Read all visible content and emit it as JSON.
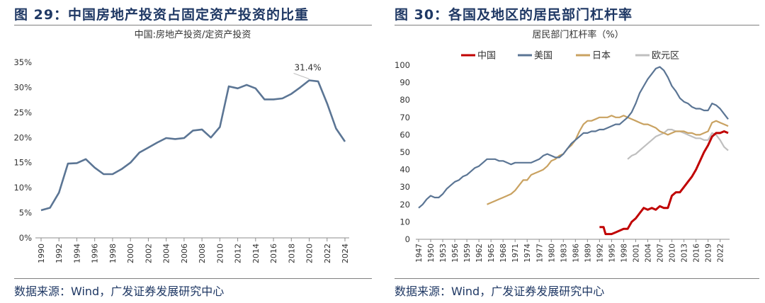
{
  "panels": [
    {
      "figure_title": "图 29：中国房地产投资占固定资产投资的比重",
      "source": "数据来源：Wind，广发证券发展研究中心"
    },
    {
      "figure_title": "图 30：各国及地区的居民部门杠杆率",
      "source": "数据来源：Wind，广发证券发展研究中心"
    }
  ],
  "chart_data": [
    {
      "type": "line",
      "title": "中国:房地产投资/定资产投资",
      "xlabel": "",
      "ylabel": "",
      "x": [
        1990,
        1991,
        1992,
        1993,
        1994,
        1995,
        1996,
        1997,
        1998,
        1999,
        2000,
        2001,
        2002,
        2003,
        2004,
        2005,
        2006,
        2007,
        2008,
        2009,
        2010,
        2011,
        2012,
        2013,
        2014,
        2015,
        2016,
        2017,
        2018,
        2019,
        2020,
        2021,
        2022,
        2023,
        2024
      ],
      "xtick_labels": [
        "1990",
        "1992",
        "1994",
        "1996",
        "1998",
        "2000",
        "2002",
        "2004",
        "2006",
        "2008",
        "2010",
        "2012",
        "2014",
        "2016",
        "2018",
        "2020",
        "2022",
        "2024"
      ],
      "ylim": [
        0,
        35
      ],
      "yticks": [
        0,
        5,
        10,
        15,
        20,
        25,
        30,
        35
      ],
      "ytick_labels": [
        "0%",
        "5%",
        "10%",
        "15%",
        "20%",
        "25%",
        "30%",
        "35%"
      ],
      "grid": false,
      "series": [
        {
          "color": "#5b7594",
          "values": [
            5.5,
            6.0,
            9.0,
            14.8,
            14.9,
            15.7,
            14.0,
            12.7,
            12.7,
            13.7,
            15.0,
            17.0,
            18.0,
            19.0,
            19.9,
            19.7,
            19.9,
            21.4,
            21.6,
            20.0,
            22.1,
            30.2,
            29.8,
            30.5,
            29.8,
            27.6,
            27.6,
            27.8,
            28.7,
            30.0,
            31.4,
            31.2,
            26.8,
            21.8,
            19.2
          ]
        }
      ],
      "annotations": [
        {
          "x": 2020,
          "y": 31.4,
          "text": "31.4%"
        }
      ]
    },
    {
      "type": "line",
      "title": "居民部门杠杆率（%）",
      "xlabel": "",
      "ylabel": "",
      "xlim": [
        1947,
        2024
      ],
      "xtick_labels": [
        "1947",
        "1950",
        "1953",
        "1956",
        "1959",
        "1962",
        "1965",
        "1968",
        "1971",
        "1974",
        "1977",
        "1980",
        "1983",
        "1986",
        "1989",
        "1992",
        "1995",
        "1998",
        "2001",
        "2004",
        "2007",
        "2010",
        "2013",
        "2016",
        "2019",
        "2022"
      ],
      "ylim": [
        0,
        100
      ],
      "yticks": [
        0,
        10,
        20,
        30,
        40,
        50,
        60,
        70,
        80,
        90,
        100
      ],
      "ytick_labels": [
        "0",
        "10",
        "20",
        "30",
        "40",
        "50",
        "60",
        "70",
        "80",
        "90",
        "100"
      ],
      "grid": false,
      "legend": "top",
      "series": [
        {
          "name": "中国",
          "color": "#c00000",
          "x": [
            1992,
            1993,
            1993.5,
            1995,
            1996,
            1997,
            1998,
            1999,
            2000,
            2001,
            2002,
            2003,
            2004,
            2005,
            2006,
            2007,
            2008,
            2009,
            2010,
            2011,
            2012,
            2013,
            2014,
            2015,
            2016,
            2017,
            2018,
            2019,
            2020,
            2021,
            2022,
            2023,
            2024
          ],
          "values": [
            7,
            7,
            3,
            3,
            4,
            5,
            6,
            6,
            10,
            12,
            15,
            18,
            17,
            18,
            17,
            19,
            18,
            18,
            25,
            27,
            27,
            30,
            33,
            36,
            40,
            45,
            50,
            54,
            59,
            61,
            61,
            62,
            61
          ]
        },
        {
          "name": "美国",
          "color": "#5b7594",
          "x": [
            1947,
            1948,
            1949,
            1950,
            1951,
            1952,
            1953,
            1954,
            1955,
            1956,
            1957,
            1958,
            1959,
            1960,
            1961,
            1962,
            1963,
            1964,
            1965,
            1966,
            1967,
            1968,
            1969,
            1970,
            1971,
            1972,
            1973,
            1974,
            1975,
            1976,
            1977,
            1978,
            1979,
            1980,
            1981,
            1982,
            1983,
            1984,
            1985,
            1986,
            1987,
            1988,
            1989,
            1990,
            1991,
            1992,
            1993,
            1994,
            1995,
            1996,
            1997,
            1998,
            1999,
            2000,
            2001,
            2002,
            2003,
            2004,
            2005,
            2006,
            2007,
            2008,
            2009,
            2010,
            2011,
            2012,
            2013,
            2014,
            2015,
            2016,
            2017,
            2018,
            2019,
            2020,
            2021,
            2022,
            2023,
            2024
          ],
          "values": [
            18,
            20,
            23,
            25,
            24,
            24,
            26,
            29,
            31,
            33,
            34,
            36,
            37,
            39,
            41,
            42,
            44,
            46,
            46,
            46,
            45,
            45,
            44,
            43,
            44,
            44,
            44,
            44,
            44,
            45,
            46,
            48,
            49,
            48,
            47,
            47,
            49,
            52,
            55,
            57,
            59,
            61,
            61,
            62,
            62,
            63,
            63,
            64,
            65,
            66,
            66,
            68,
            70,
            73,
            78,
            84,
            88,
            92,
            95,
            98,
            99,
            97,
            93,
            88,
            85,
            81,
            79,
            78,
            76,
            75,
            75,
            74,
            74,
            78,
            77,
            75,
            72,
            69
          ]
        },
        {
          "name": "日本",
          "color": "#c9a261",
          "x": [
            1964,
            1965,
            1966,
            1967,
            1968,
            1969,
            1970,
            1971,
            1972,
            1973,
            1974,
            1975,
            1976,
            1977,
            1978,
            1979,
            1980,
            1981,
            1982,
            1983,
            1984,
            1985,
            1986,
            1987,
            1988,
            1989,
            1990,
            1991,
            1992,
            1993,
            1994,
            1995,
            1996,
            1997,
            1998,
            1999,
            2000,
            2001,
            2002,
            2003,
            2004,
            2005,
            2006,
            2007,
            2008,
            2009,
            2010,
            2011,
            2012,
            2013,
            2014,
            2015,
            2016,
            2017,
            2018,
            2019,
            2020,
            2021,
            2022,
            2023,
            2024
          ],
          "values": [
            20,
            21,
            22,
            23,
            24,
            25,
            26,
            28,
            31,
            34,
            34,
            37,
            38,
            39,
            40,
            42,
            45,
            46,
            48,
            49,
            52,
            54,
            57,
            62,
            66,
            68,
            68,
            69,
            70,
            70,
            70,
            71,
            70,
            70,
            71,
            70,
            69,
            68,
            67,
            66,
            66,
            65,
            64,
            62,
            61,
            60,
            61,
            62,
            62,
            62,
            61,
            61,
            60,
            60,
            61,
            62,
            67,
            68,
            67,
            66,
            65
          ]
        },
        {
          "name": "欧元区",
          "color": "#bfbfbf",
          "x": [
            1999,
            2000,
            2001,
            2002,
            2003,
            2004,
            2005,
            2006,
            2007,
            2008,
            2009,
            2010,
            2011,
            2012,
            2013,
            2014,
            2015,
            2016,
            2017,
            2018,
            2019,
            2020,
            2021,
            2022,
            2023,
            2024
          ],
          "values": [
            46,
            48,
            49,
            51,
            53,
            55,
            57,
            59,
            60,
            61,
            63,
            63,
            62,
            62,
            61,
            60,
            59,
            58,
            58,
            57,
            57,
            61,
            60,
            57,
            53,
            51
          ]
        }
      ]
    }
  ]
}
